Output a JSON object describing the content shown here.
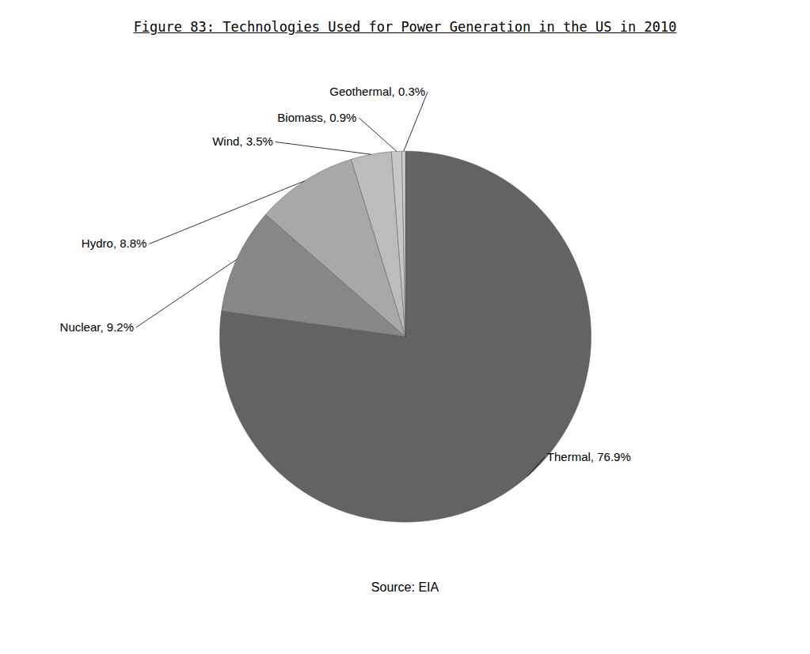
{
  "chart_data": {
    "type": "pie",
    "title": "Figure 83: Technologies Used for Power Generation in the US in 2010",
    "caption": "Source:  EIA",
    "categories": [
      "Thermal",
      "Nuclear",
      "Hydro",
      "Wind",
      "Biomass",
      "Geothermal"
    ],
    "values": [
      76.9,
      9.2,
      8.8,
      3.5,
      0.9,
      0.3
    ],
    "value_labels": [
      "Thermal, 76.9%",
      "Nuclear, 9.2%",
      "Hydro, 8.8%",
      "Wind, 3.5%",
      "Biomass, 0.9%",
      "Geothermal, 0.3%"
    ],
    "data_labels": true,
    "colors": [
      "#636363",
      "#878787",
      "#a8a8a8",
      "#bcbcbc",
      "#c8c8c8",
      "#d0d0d0"
    ]
  }
}
